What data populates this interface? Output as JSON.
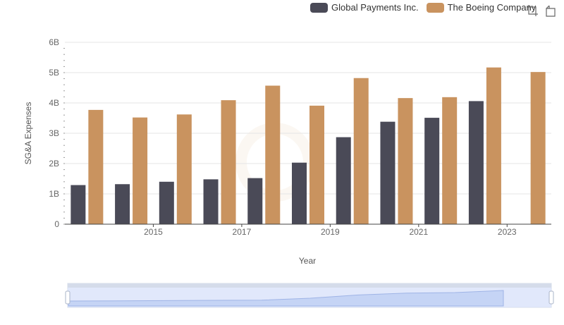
{
  "legend": {
    "items": [
      {
        "name": "Global Payments Inc.",
        "color": "#4a4a57"
      },
      {
        "name": "The Boeing Company",
        "color": "#c9935f"
      }
    ]
  },
  "toolbox": {
    "icons": [
      "zoom-icon",
      "restore-icon"
    ]
  },
  "chart_data": {
    "type": "bar",
    "x": [
      2014,
      2015,
      2016,
      2017,
      2018,
      2019,
      2020,
      2021,
      2022,
      2023,
      2024
    ],
    "xticks": [
      "2015",
      "2017",
      "2019",
      "2021",
      "2023"
    ],
    "ylabel": "SG&A Expenses",
    "xlabel": "Year",
    "yticks": [
      "0",
      "1B",
      "2B",
      "3B",
      "4B",
      "5B",
      "6B"
    ],
    "ylim": [
      0,
      6000000000
    ],
    "series": [
      {
        "name": "Global Payments Inc.",
        "color": "#4a4a57",
        "values": [
          1290000000,
          1320000000,
          1400000000,
          1480000000,
          1520000000,
          2030000000,
          2870000000,
          3380000000,
          3510000000,
          4060000000,
          null
        ]
      },
      {
        "name": "The Boeing Company",
        "color": "#c9935f",
        "values": [
          3770000000,
          3520000000,
          3620000000,
          4090000000,
          4570000000,
          3910000000,
          4820000000,
          4160000000,
          4190000000,
          5170000000,
          5020000000
        ]
      }
    ],
    "grid": true,
    "legend_position": "top-right"
  }
}
